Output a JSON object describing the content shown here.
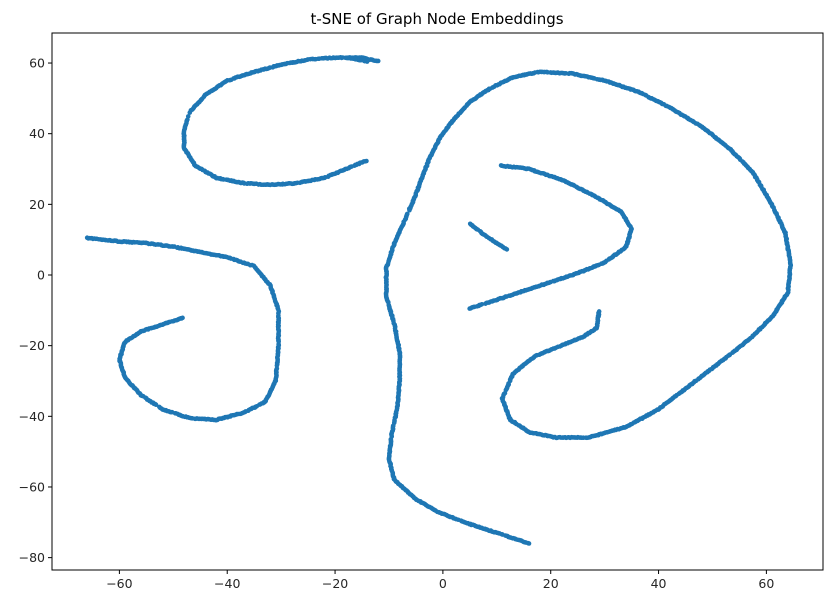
{
  "chart_data": {
    "type": "scatter",
    "title": "t-SNE of Graph Node Embeddings",
    "xlabel": "",
    "ylabel": "",
    "xlim": [
      -72.5,
      70.5
    ],
    "ylim": [
      -83.5,
      68.5
    ],
    "xticks": [
      -60,
      -40,
      -20,
      0,
      20,
      40,
      60
    ],
    "yticks": [
      60,
      40,
      20,
      0,
      -20,
      -40,
      -60,
      -80
    ],
    "xtick_labels": [
      "−60",
      "−40",
      "−20",
      "0",
      "20",
      "40",
      "60"
    ],
    "ytick_labels": [
      "60",
      "40",
      "20",
      "0",
      "−20",
      "−40",
      "−60",
      "−80"
    ],
    "grid": false,
    "legend": "none",
    "marker_color": "#1f77b4",
    "series": [
      {
        "curves": [
          [
            [
              -12,
              60.5
            ],
            [
              -15,
              61.5
            ],
            [
              -20,
              61.5
            ],
            [
              -25,
              61
            ],
            [
              -30,
              59.5
            ],
            [
              -35,
              57.5
            ],
            [
              -40,
              55
            ],
            [
              -44,
              51
            ],
            [
              -47,
              46
            ],
            [
              -48,
              41
            ],
            [
              -48,
              36
            ],
            [
              -46,
              31
            ],
            [
              -42,
              27.5
            ],
            [
              -37,
              26
            ],
            [
              -32,
              25.5
            ],
            [
              -27,
              26
            ],
            [
              -22,
              27.5
            ],
            [
              -18,
              30
            ],
            [
              -14,
              32.5
            ]
          ],
          [
            [
              -66,
              10.5
            ],
            [
              -60,
              9.5
            ],
            [
              -55,
              9
            ],
            [
              -50,
              8
            ],
            [
              -45,
              6.5
            ],
            [
              -40,
              5
            ],
            [
              -35,
              2.5
            ],
            [
              -32,
              -3
            ],
            [
              -30.5,
              -10
            ],
            [
              -30.5,
              -20
            ],
            [
              -31,
              -30
            ],
            [
              -33,
              -36
            ],
            [
              -37,
              -39
            ],
            [
              -42,
              -41
            ],
            [
              -47,
              -40.5
            ],
            [
              -52,
              -38
            ],
            [
              -56,
              -34
            ],
            [
              -59,
              -29
            ],
            [
              -60,
              -24
            ],
            [
              -59,
              -19
            ],
            [
              -56,
              -16
            ],
            [
              -52,
              -14
            ],
            [
              -48,
              -12
            ]
          ],
          [
            [
              -14,
              60.5
            ],
            [
              -18,
              61.5
            ]
          ],
          [
            [
              16,
              -76
            ],
            [
              10,
              -73
            ],
            [
              4,
              -70
            ],
            [
              -1,
              -67
            ],
            [
              -5,
              -63.5
            ],
            [
              -9,
              -58
            ],
            [
              -10,
              -52
            ],
            [
              -9.5,
              -45
            ],
            [
              -8.5,
              -38
            ],
            [
              -8,
              -30
            ],
            [
              -8,
              -22
            ],
            [
              -9,
              -14
            ],
            [
              -10.5,
              -6
            ],
            [
              -10.5,
              2
            ],
            [
              -9,
              9
            ],
            [
              -7.5,
              14
            ],
            [
              -5.5,
              21
            ],
            [
              -4,
              27
            ],
            [
              -2.5,
              33
            ],
            [
              -0.5,
              39
            ],
            [
              2,
              44
            ],
            [
              5,
              49
            ],
            [
              9,
              53
            ],
            [
              13,
              56
            ],
            [
              18,
              57.5
            ],
            [
              24,
              57
            ],
            [
              30,
              55
            ],
            [
              36,
              52
            ],
            [
              42,
              47.5
            ],
            [
              48,
              42
            ],
            [
              53,
              36
            ],
            [
              57.5,
              29
            ],
            [
              61,
              20
            ],
            [
              63.5,
              12
            ],
            [
              64.5,
              3
            ],
            [
              64,
              -5
            ],
            [
              61,
              -12
            ],
            [
              57,
              -18
            ],
            [
              52,
              -24
            ],
            [
              46,
              -31
            ],
            [
              40,
              -38
            ],
            [
              34,
              -43
            ],
            [
              27,
              -46
            ],
            [
              21,
              -46
            ],
            [
              16,
              -44.5
            ],
            [
              12.5,
              -41
            ],
            [
              11,
              -35
            ],
            [
              13,
              -28
            ],
            [
              17,
              -23
            ],
            [
              22,
              -20
            ],
            [
              26,
              -17.5
            ],
            [
              28.5,
              -15
            ],
            [
              29,
              -10
            ]
          ],
          [
            [
              5,
              -9.5
            ],
            [
              10,
              -7
            ],
            [
              15,
              -4.5
            ],
            [
              20,
              -2
            ],
            [
              25,
              0.5
            ],
            [
              30,
              3.5
            ],
            [
              34,
              8
            ],
            [
              35,
              13
            ],
            [
              33,
              18
            ],
            [
              28,
              22.5
            ],
            [
              22,
              27
            ],
            [
              16,
              30
            ],
            [
              10.5,
              31
            ]
          ],
          [
            [
              5,
              14.5
            ],
            [
              8,
              11
            ],
            [
              12,
              7
            ]
          ]
        ]
      }
    ]
  }
}
